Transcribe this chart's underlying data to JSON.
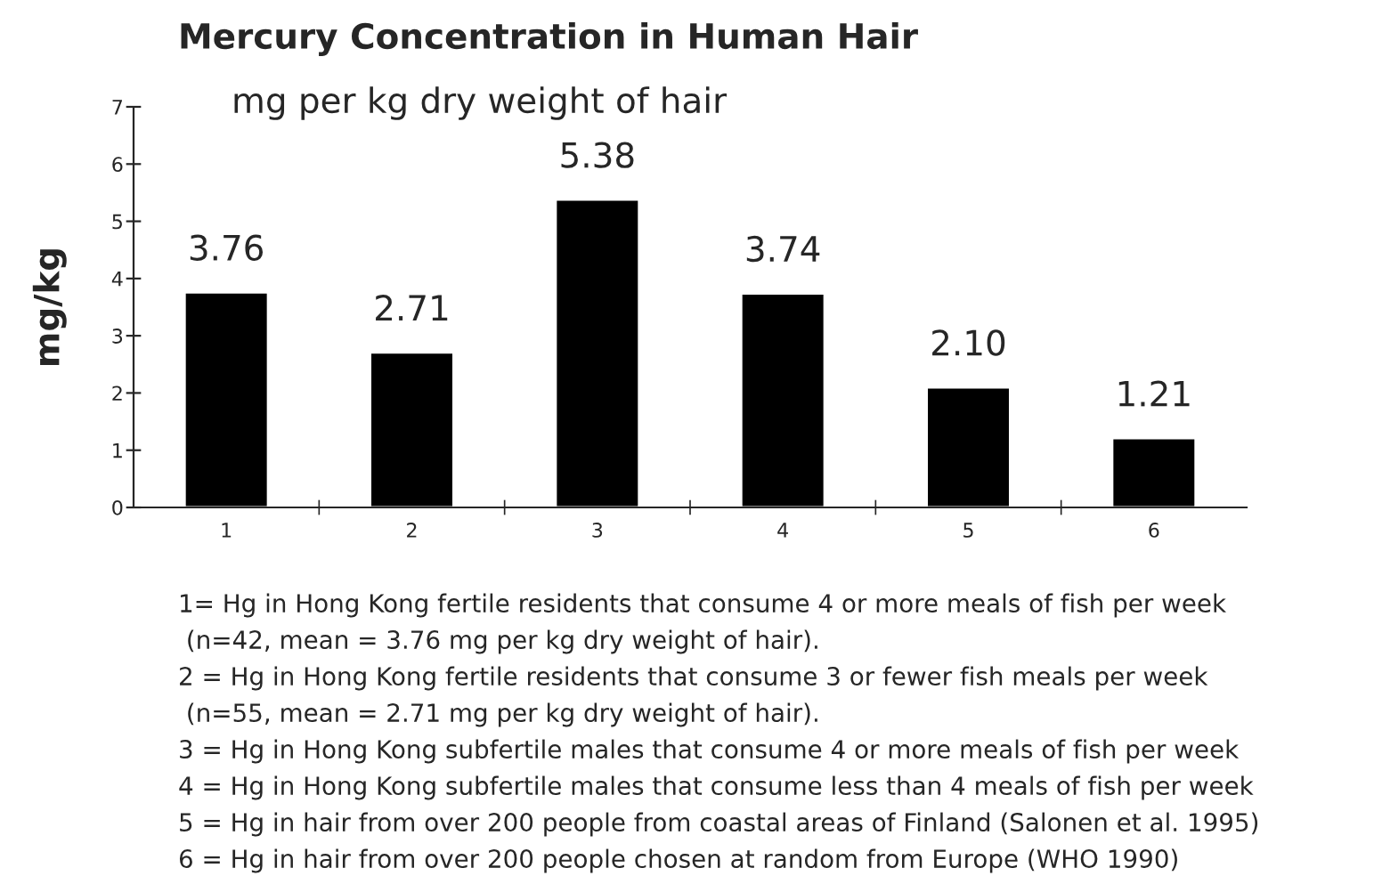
{
  "chart_data": {
    "type": "bar",
    "title": "Mercury Concentration in Human Hair",
    "subtitle": "mg per kg dry weight of hair",
    "ylabel": "mg/kg",
    "categories": [
      "1",
      "2",
      "3",
      "4",
      "5",
      "6"
    ],
    "values": [
      3.76,
      2.71,
      5.38,
      3.74,
      2.1,
      1.21
    ],
    "value_labels": [
      "3.76",
      "2.71",
      "5.38",
      "3.74",
      "2.10",
      "1.21"
    ],
    "color": "#000000",
    "ylim": [
      0,
      7
    ],
    "yticks": [
      0,
      1,
      2,
      3,
      4,
      5,
      6,
      7
    ],
    "grid": false,
    "legend": false,
    "annotations": [
      "1= Hg in Hong Kong fertile residents that consume 4 or more meals of fish per week",
      " (n=42, mean = 3.76 mg per kg dry weight of hair).",
      "2 = Hg in Hong Kong fertile residents that consume 3 or fewer fish meals per week",
      " (n=55, mean = 2.71 mg per kg dry weight of hair).",
      "3 = Hg in Hong Kong subfertile males that consume 4 or more meals of fish per week",
      "4 = Hg in Hong Kong subfertile males that consume less than 4 meals of fish per week",
      "5 = Hg in hair from over 200 people from coastal areas of Finland (Salonen et al. 1995)",
      "6 = Hg in hair from over 200 people chosen at random from Europe (WHO 1990)"
    ]
  }
}
